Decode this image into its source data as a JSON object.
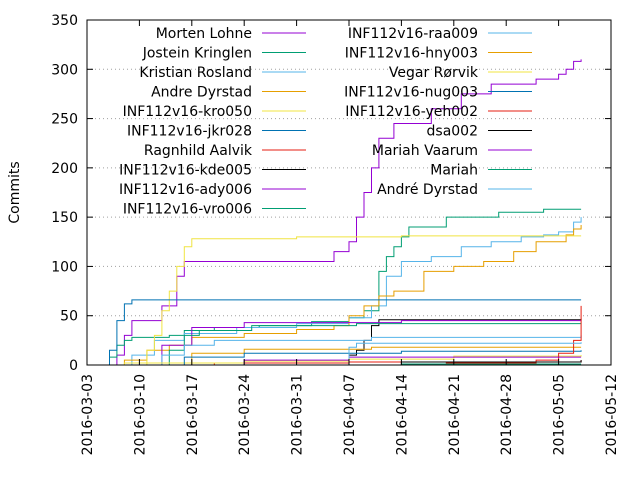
{
  "chart_data": {
    "type": "line",
    "title": "",
    "xlabel": "",
    "ylabel": "Commits",
    "x_type": "date",
    "xlim": [
      "2016-03-03",
      "2016-05-12"
    ],
    "ylim": [
      0,
      350
    ],
    "xticks": [
      "2016-03-03",
      "2016-03-10",
      "2016-03-17",
      "2016-03-24",
      "2016-03-31",
      "2016-04-07",
      "2016-04-14",
      "2016-04-21",
      "2016-04-28",
      "2016-05-05",
      "2016-05-12"
    ],
    "yticks": [
      0,
      50,
      100,
      150,
      200,
      250,
      300,
      350
    ],
    "grid": "dotted horizontal lines at y ticks",
    "legend_position": "top, two columns",
    "series": [
      {
        "name": "Morten Lohne",
        "color": "#9400d3",
        "points": [
          [
            "2016-03-06",
            0
          ],
          [
            "2016-03-07",
            10
          ],
          [
            "2016-03-08",
            30
          ],
          [
            "2016-03-09",
            45
          ],
          [
            "2016-03-13",
            60
          ],
          [
            "2016-03-15",
            90
          ],
          [
            "2016-03-16",
            105
          ],
          [
            "2016-04-02",
            105
          ],
          [
            "2016-04-05",
            115
          ],
          [
            "2016-04-07",
            125
          ],
          [
            "2016-04-08",
            150
          ],
          [
            "2016-04-09",
            175
          ],
          [
            "2016-04-10",
            200
          ],
          [
            "2016-04-11",
            230
          ],
          [
            "2016-04-13",
            245
          ],
          [
            "2016-04-18",
            260
          ],
          [
            "2016-04-22",
            275
          ],
          [
            "2016-04-26",
            285
          ],
          [
            "2016-05-02",
            290
          ],
          [
            "2016-05-05",
            295
          ],
          [
            "2016-05-06",
            300
          ],
          [
            "2016-05-07",
            308
          ],
          [
            "2016-05-08",
            310
          ]
        ]
      },
      {
        "name": "Jostein Kringlen",
        "color": "#009e73",
        "points": [
          [
            "2016-03-05",
            0
          ],
          [
            "2016-03-06",
            8
          ],
          [
            "2016-03-07",
            20
          ],
          [
            "2016-03-08",
            25
          ],
          [
            "2016-03-09",
            28
          ],
          [
            "2016-03-14",
            30
          ],
          [
            "2016-03-16",
            35
          ],
          [
            "2016-03-20",
            38
          ],
          [
            "2016-03-26",
            40
          ],
          [
            "2016-04-02",
            44
          ],
          [
            "2016-04-07",
            48
          ],
          [
            "2016-04-09",
            55
          ],
          [
            "2016-04-11",
            95
          ],
          [
            "2016-04-12",
            110
          ],
          [
            "2016-04-13",
            120
          ],
          [
            "2016-04-14",
            130
          ],
          [
            "2016-04-15",
            140
          ],
          [
            "2016-04-20",
            150
          ],
          [
            "2016-04-27",
            155
          ],
          [
            "2016-05-03",
            158
          ],
          [
            "2016-05-08",
            158
          ]
        ]
      },
      {
        "name": "Kristian Rosland",
        "color": "#56b4e9",
        "points": [
          [
            "2016-03-07",
            0
          ],
          [
            "2016-03-09",
            10
          ],
          [
            "2016-03-12",
            25
          ],
          [
            "2016-03-16",
            32
          ],
          [
            "2016-03-23",
            38
          ],
          [
            "2016-03-31",
            42
          ],
          [
            "2016-04-07",
            48
          ],
          [
            "2016-04-10",
            60
          ],
          [
            "2016-04-12",
            90
          ],
          [
            "2016-04-14",
            105
          ],
          [
            "2016-04-18",
            110
          ],
          [
            "2016-04-22",
            120
          ],
          [
            "2016-04-26",
            125
          ],
          [
            "2016-04-30",
            130
          ],
          [
            "2016-05-03",
            132
          ],
          [
            "2016-05-05",
            135
          ],
          [
            "2016-05-07",
            145
          ],
          [
            "2016-05-08",
            150
          ]
        ]
      },
      {
        "name": "Andre Dyrstad",
        "color": "#e69f00",
        "points": [
          [
            "2016-03-06",
            0
          ],
          [
            "2016-03-08",
            5
          ],
          [
            "2016-03-11",
            15
          ],
          [
            "2016-03-14",
            20
          ],
          [
            "2016-03-17",
            28
          ],
          [
            "2016-03-24",
            32
          ],
          [
            "2016-03-31",
            36
          ],
          [
            "2016-04-05",
            40
          ],
          [
            "2016-04-07",
            50
          ],
          [
            "2016-04-09",
            60
          ],
          [
            "2016-04-11",
            70
          ],
          [
            "2016-04-13",
            75
          ],
          [
            "2016-04-17",
            95
          ],
          [
            "2016-04-21",
            100
          ],
          [
            "2016-04-25",
            105
          ],
          [
            "2016-04-29",
            115
          ],
          [
            "2016-05-02",
            125
          ],
          [
            "2016-05-06",
            132
          ],
          [
            "2016-05-07",
            138
          ],
          [
            "2016-05-08",
            142
          ]
        ]
      },
      {
        "name": "INF112v16-kro050",
        "color": "#f0e442",
        "points": [
          [
            "2016-03-09",
            0
          ],
          [
            "2016-03-11",
            15
          ],
          [
            "2016-03-12",
            30
          ],
          [
            "2016-03-13",
            55
          ],
          [
            "2016-03-14",
            75
          ],
          [
            "2016-03-15",
            100
          ],
          [
            "2016-03-16",
            120
          ],
          [
            "2016-03-17",
            128
          ],
          [
            "2016-03-31",
            130
          ],
          [
            "2016-04-14",
            131
          ],
          [
            "2016-05-08",
            131
          ]
        ]
      },
      {
        "name": "INF112v16-jkr028",
        "color": "#0072b2",
        "points": [
          [
            "2016-03-05",
            0
          ],
          [
            "2016-03-06",
            15
          ],
          [
            "2016-03-07",
            45
          ],
          [
            "2016-03-08",
            62
          ],
          [
            "2016-03-09",
            66
          ],
          [
            "2016-05-08",
            66
          ]
        ]
      },
      {
        "name": "Ragnhild Aalvik",
        "color": "#e51e10",
        "points": [
          [
            "2016-03-14",
            0
          ],
          [
            "2016-03-20",
            2
          ],
          [
            "2016-04-07",
            3
          ],
          [
            "2016-05-08",
            5
          ]
        ]
      },
      {
        "name": "INF112v16-kde005",
        "color": "#000000",
        "points": [
          [
            "2016-04-05",
            0
          ],
          [
            "2016-04-07",
            10
          ],
          [
            "2016-04-08",
            15
          ],
          [
            "2016-04-09",
            25
          ],
          [
            "2016-04-10",
            40
          ],
          [
            "2016-04-11",
            46
          ],
          [
            "2016-05-08",
            47
          ]
        ]
      },
      {
        "name": "INF112v16-ady006",
        "color": "#9400d3",
        "points": [
          [
            "2016-03-10",
            0
          ],
          [
            "2016-03-13",
            20
          ],
          [
            "2016-03-17",
            38
          ],
          [
            "2016-03-24",
            43
          ],
          [
            "2016-04-14",
            45
          ],
          [
            "2016-05-08",
            45
          ]
        ]
      },
      {
        "name": "INF112v16-vro006",
        "color": "#009e73",
        "points": [
          [
            "2016-03-12",
            0
          ],
          [
            "2016-03-14",
            15
          ],
          [
            "2016-03-16",
            30
          ],
          [
            "2016-03-18",
            35
          ],
          [
            "2016-03-25",
            40
          ],
          [
            "2016-04-08",
            42
          ],
          [
            "2016-05-08",
            42
          ]
        ]
      },
      {
        "name": "INF112v16-raa009",
        "color": "#56b4e9",
        "points": [
          [
            "2016-03-11",
            0
          ],
          [
            "2016-03-13",
            10
          ],
          [
            "2016-03-16",
            20
          ],
          [
            "2016-03-20",
            25
          ],
          [
            "2016-04-10",
            28
          ],
          [
            "2016-05-08",
            30
          ]
        ]
      },
      {
        "name": "INF112v16-hny003",
        "color": "#e69f00",
        "points": [
          [
            "2016-03-14",
            0
          ],
          [
            "2016-03-17",
            12
          ],
          [
            "2016-03-24",
            16
          ],
          [
            "2016-04-10",
            18
          ],
          [
            "2016-05-08",
            18
          ]
        ]
      },
      {
        "name": "Vegar Rørvik",
        "color": "#f0e442",
        "points": [
          [
            "2016-03-05",
            0
          ],
          [
            "2016-03-08",
            2
          ],
          [
            "2016-03-24",
            4
          ],
          [
            "2016-04-07",
            6
          ],
          [
            "2016-04-21",
            9
          ],
          [
            "2016-05-08",
            10
          ]
        ]
      },
      {
        "name": "INF112v16-nug003",
        "color": "#0072b2",
        "points": [
          [
            "2016-03-14",
            0
          ],
          [
            "2016-03-16",
            8
          ],
          [
            "2016-03-24",
            12
          ],
          [
            "2016-04-14",
            14
          ],
          [
            "2016-05-08",
            15
          ]
        ]
      },
      {
        "name": "INF112v16-yeh002",
        "color": "#e51e10",
        "points": [
          [
            "2016-04-12",
            0
          ],
          [
            "2016-04-20",
            2
          ],
          [
            "2016-05-02",
            5
          ],
          [
            "2016-05-05",
            12
          ],
          [
            "2016-05-07",
            25
          ],
          [
            "2016-05-08",
            60
          ]
        ]
      },
      {
        "name": "dsa002",
        "color": "#000000",
        "points": [
          [
            "2016-04-08",
            0
          ],
          [
            "2016-04-14",
            3
          ],
          [
            "2016-05-08",
            5
          ]
        ]
      },
      {
        "name": "Mariah Vaarum",
        "color": "#9400d3",
        "points": [
          [
            "2016-03-17",
            0
          ],
          [
            "2016-03-24",
            5
          ],
          [
            "2016-04-07",
            8
          ],
          [
            "2016-05-08",
            8
          ]
        ]
      },
      {
        "name": "Mariah",
        "color": "#009e73",
        "points": [
          [
            "2016-04-07",
            0
          ],
          [
            "2016-04-14",
            1
          ],
          [
            "2016-05-08",
            1
          ]
        ]
      },
      {
        "name": "André Dyrstad",
        "color": "#56b4e9",
        "points": [
          [
            "2016-04-06",
            0
          ],
          [
            "2016-04-07",
            18
          ],
          [
            "2016-04-08",
            22
          ],
          [
            "2016-05-08",
            23
          ]
        ]
      }
    ]
  }
}
